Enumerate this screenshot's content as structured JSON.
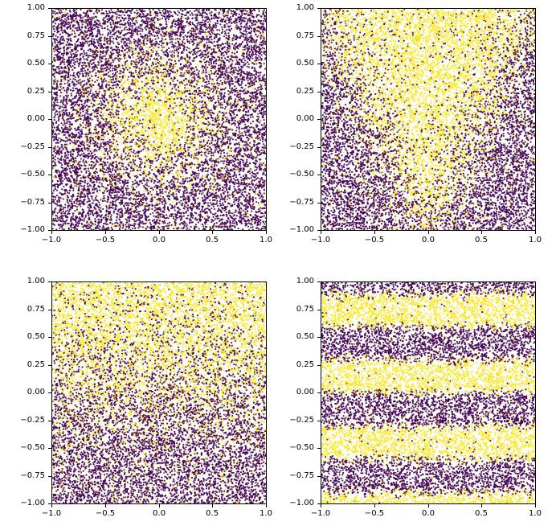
{
  "figure": {
    "background": "#ffffff",
    "title": ""
  },
  "colors": {
    "class0": "#440154",
    "class1": "#fde725",
    "frame": "#000000",
    "tick_text": "#000000"
  },
  "axes": {
    "x_tick_values": [
      -1.0,
      -0.5,
      0.0,
      0.5,
      1.0
    ],
    "x_tick_labels": [
      "−1.0",
      "−0.5",
      "0.0",
      "0.5",
      "1.0"
    ],
    "y_tick_values": [
      1.0,
      0.75,
      0.5,
      0.25,
      0.0,
      -0.25,
      -0.5,
      -0.75,
      -1.0
    ],
    "y_tick_labels": [
      "1.00",
      "0.75",
      "0.50",
      "0.25",
      "0.00",
      "−0.25",
      "−0.50",
      "−0.75",
      "−1.00"
    ],
    "x_range": [
      -1.0,
      1.0
    ],
    "y_range": [
      -1.0,
      1.0
    ]
  },
  "chart_data": [
    {
      "type": "scatter",
      "title": "",
      "xlabel": "",
      "ylabel": "",
      "x_range": [
        -1.0,
        1.0
      ],
      "y_range": [
        -1.0,
        1.0
      ],
      "n_points": 12000,
      "point_radius_px": 1.1,
      "seed": 11,
      "pattern": "radial_blob",
      "description": "Uniform random points in [-1,1]^2; probability of yellow class peaks at the origin and decays radially (yellow Gaussian blob centered at (0,0) over purple background with label noise).",
      "params": {
        "base": 0.07,
        "amp": 0.9,
        "sigma": 0.33
      }
    },
    {
      "type": "scatter",
      "title": "",
      "xlabel": "",
      "ylabel": "",
      "x_range": [
        -1.0,
        1.0
      ],
      "y_range": [
        -1.0,
        1.0
      ],
      "n_points": 12000,
      "point_radius_px": 1.1,
      "seed": 22,
      "pattern": "cone_up",
      "description": "Uniform random points; yellow class fills an upward-opening cone/triangle (dense at top centre, apex near bottom centre) with label noise.",
      "params": {
        "base": 0.06,
        "amp": 0.86,
        "slope": 2.0,
        "offset": 1.0,
        "gain": 3.5
      }
    },
    {
      "type": "scatter",
      "title": "",
      "xlabel": "",
      "ylabel": "",
      "x_range": [
        -1.0,
        1.0
      ],
      "y_range": [
        -1.0,
        1.0
      ],
      "n_points": 12000,
      "point_radius_px": 1.1,
      "seed": 33,
      "pattern": "vertical_gradient",
      "description": "Uniform random points; probability of yellow increases monotonically with y (yellow dense at the top, purple at the bottom) with label noise.",
      "params": {
        "base": 0.05,
        "amp": 0.9,
        "gain": 3.0,
        "center": 0.1
      }
    },
    {
      "type": "scatter",
      "title": "",
      "xlabel": "",
      "ylabel": "",
      "x_range": [
        -1.0,
        1.0
      ],
      "y_range": [
        -1.0,
        1.0
      ],
      "n_points": 12000,
      "point_radius_px": 1.1,
      "seed": 44,
      "pattern": "horizontal_bands",
      "description": "Uniform random points; yellow probability is sinusoidal in y giving horizontal yellow bands near y≈0.75, y≈0.15, y≈−0.5 and the bottom edge, separated by purple bands, with label noise.",
      "params": {
        "omega": 10.472,
        "phase": 0.0,
        "contrast": 1.8
      }
    }
  ]
}
